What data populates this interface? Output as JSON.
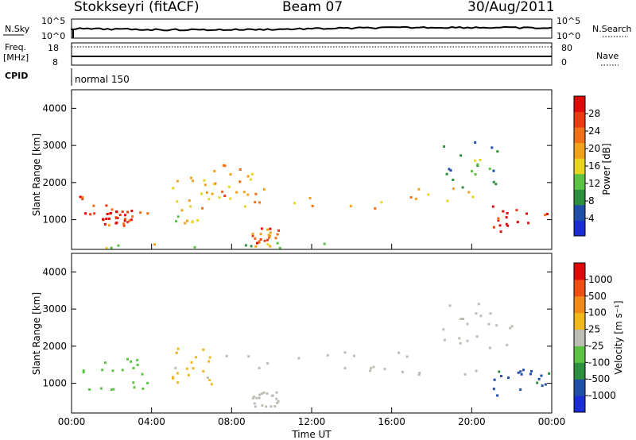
{
  "header": {
    "station": "Stokkseyri (fitACF)",
    "beam": "Beam 07",
    "date": "30/Aug/2011"
  },
  "strip_panels": {
    "nsky_label": "N.Sky",
    "nsky_ticks": [
      "10^5",
      "10^0"
    ],
    "nsearch_label": "N.Search",
    "nsearch_ticks": [
      "10^5",
      "10^0"
    ],
    "freq_label": "Freq.",
    "freq_unit": "[MHz]",
    "freq_ticks": [
      "18",
      "8"
    ],
    "nave_label": "Nave",
    "nave_ticks": [
      "80",
      "0"
    ],
    "cpid_label": "CPID",
    "cpid_value": "normal 150"
  },
  "colors": {
    "power": [
      "#1a2dd6",
      "#1f4fa8",
      "#2e8f3e",
      "#5cc244",
      "#e9d41e",
      "#f0a21c",
      "#f07018",
      "#ee3a14",
      "#e00a0a"
    ],
    "velocity": [
      "#1a2dd6",
      "#1f4fa8",
      "#2e8f3e",
      "#5cc244",
      "#bdbdb4",
      "#f0b81c",
      "#f08a18",
      "#ee5014",
      "#e00a0a"
    ],
    "ground_scatter": "#bdbdb4"
  },
  "chart_data": [
    {
      "type": "heatmap",
      "panel": "power",
      "ylabel": "Slant Range [km]",
      "yticks": [
        "4000",
        "3000",
        "2000",
        "1000"
      ],
      "ylim": [
        200,
        4500
      ],
      "xlim": [
        0,
        24
      ],
      "colorbar_label": "Power [dB]",
      "colorbar_ticks": [
        "28",
        "24",
        "20",
        "16",
        "12",
        "8",
        "4"
      ],
      "colorbar_range": [
        0,
        30
      ],
      "regions": [
        {
          "t": [
            0.2,
            3.8
          ],
          "r": [
            800,
            1700
          ],
          "v": 24
        },
        {
          "t": [
            1.5,
            3.0
          ],
          "r": [
            900,
            1300
          ],
          "v": 28
        },
        {
          "t": [
            5.0,
            7.0
          ],
          "r": [
            900,
            2200
          ],
          "v": 16
        },
        {
          "t": [
            6.5,
            9.0
          ],
          "r": [
            1600,
            2600
          ],
          "v": 20
        },
        {
          "t": [
            7.5,
            20.5
          ],
          "r": [
            1250,
            1900
          ],
          "v": 18
        },
        {
          "t": [
            9.0,
            10.3
          ],
          "r": [
            400,
            800
          ],
          "v": 24
        },
        {
          "t": [
            18.5,
            22.0
          ],
          "r": [
            1900,
            3300
          ],
          "v": 10
        },
        {
          "t": [
            21.0,
            24.0
          ],
          "r": [
            700,
            1400
          ],
          "v": 28
        },
        {
          "t": [
            0.0,
            13.0
          ],
          "r": [
            200,
            400
          ],
          "v": 14
        }
      ]
    },
    {
      "type": "heatmap",
      "panel": "velocity",
      "ylabel": "Slant Range [km]",
      "yticks": [
        "4000",
        "3000",
        "2000",
        "1000"
      ],
      "ylim": [
        200,
        4500
      ],
      "xlim": [
        0,
        24
      ],
      "xlabel": "Time UT",
      "xticks": [
        "00:00",
        "04:00",
        "08:00",
        "12:00",
        "16:00",
        "20:00",
        "00:00"
      ],
      "colorbar_label": "Velocity [m s⁻¹]",
      "colorbar_ticks": [
        "1000",
        "500",
        "100",
        "25",
        "-25",
        "-100",
        "-500",
        "-1000"
      ],
      "colorbar_range": [
        -1000,
        1000
      ],
      "regions": [
        {
          "t": [
            0.2,
            3.8
          ],
          "r": [
            800,
            1700
          ],
          "v": -200
        },
        {
          "t": [
            5.0,
            7.0
          ],
          "r": [
            900,
            2200
          ],
          "v": 150
        },
        {
          "t": [
            7.5,
            20.5
          ],
          "r": [
            1250,
            1900
          ],
          "v": 0
        },
        {
          "t": [
            18.5,
            22.0
          ],
          "r": [
            1900,
            3300
          ],
          "v": 0
        },
        {
          "t": [
            21.0,
            24.0
          ],
          "r": [
            700,
            1400
          ],
          "v": -600
        },
        {
          "t": [
            9.0,
            10.3
          ],
          "r": [
            400,
            800
          ],
          "v": 0
        }
      ]
    }
  ]
}
